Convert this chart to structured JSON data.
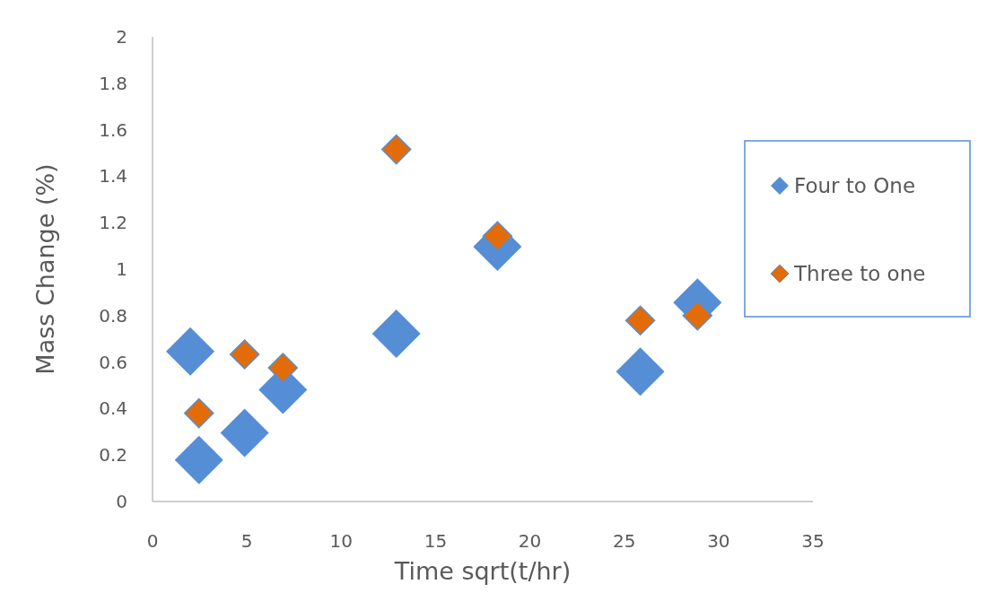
{
  "chart_data": {
    "type": "scatter",
    "xlabel": "Time sqrt(t/hr)",
    "ylabel": "Mass Change (%)",
    "xlim": [
      0,
      35
    ],
    "xticks": [
      0,
      5,
      10,
      15,
      20,
      25,
      30,
      35
    ],
    "ylim": [
      0,
      2
    ],
    "yticks": [
      0,
      0.2,
      0.4,
      0.6,
      0.8,
      1,
      1.2,
      1.4,
      1.6,
      1.8,
      2
    ],
    "grid": false,
    "legend": "right",
    "marker": "diamond",
    "series": [
      {
        "name": "Four to One",
        "color": "#558ed5",
        "x": [
          2,
          2.46,
          4.88,
          6.91,
          12.92,
          18.28,
          25.85,
          28.88
        ],
        "values": [
          0.646,
          0.179,
          0.295,
          0.481,
          0.722,
          1.097,
          0.559,
          0.856
        ]
      },
      {
        "name": "Three to one",
        "color": "#e36c0a",
        "x": [
          2.46,
          4.88,
          6.91,
          12.92,
          18.28,
          25.85,
          28.88
        ],
        "values": [
          0.38,
          0.633,
          0.575,
          1.515,
          1.142,
          0.779,
          0.8
        ]
      }
    ]
  }
}
